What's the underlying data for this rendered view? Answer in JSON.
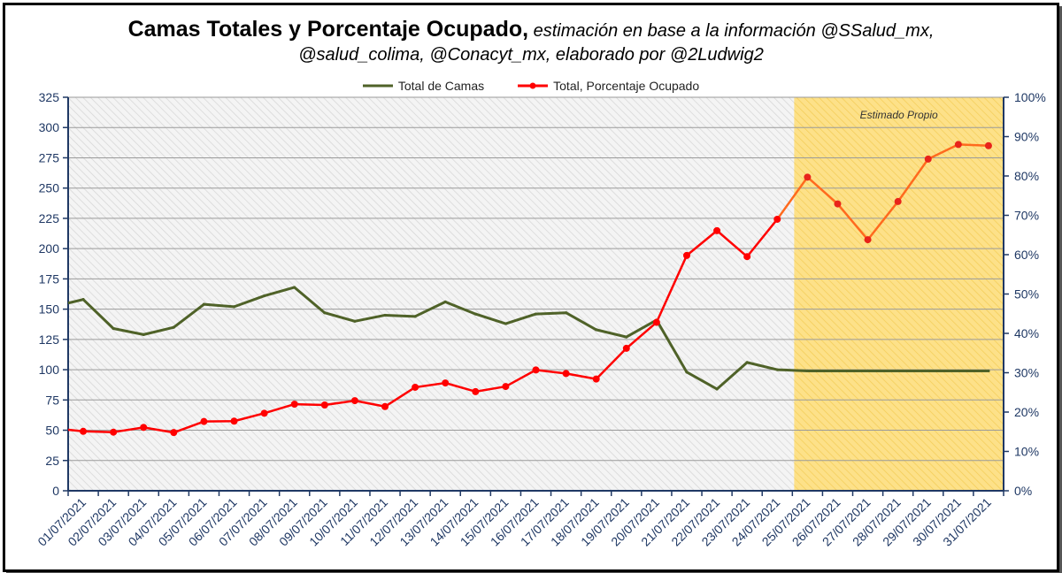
{
  "chart_data": {
    "type": "line",
    "title": "Camas Totales y Porcentaje Ocupado,",
    "subtitle_line1": "estimación en base a la información @SSalud_mx,",
    "subtitle_line2": "@salud_colima, @Conacyt_mx, elaborado por @2Ludwig2",
    "x": [
      "01/07/2021",
      "02/07/2021",
      "03/07/2021",
      "04/07/2021",
      "05/07/2021",
      "06/07/2021",
      "07/07/2021",
      "08/07/2021",
      "09/07/2021",
      "10/07/2021",
      "11/07/2021",
      "12/07/2021",
      "13/07/2021",
      "14/07/2021",
      "15/07/2021",
      "16/07/2021",
      "17/07/2021",
      "18/07/2021",
      "19/07/2021",
      "20/07/2021",
      "21/07/2021",
      "22/07/2021",
      "23/07/2021",
      "24/07/2021",
      "25/07/2021",
      "26/07/2021",
      "27/07/2021",
      "28/07/2021",
      "29/07/2021",
      "30/07/2021",
      "31/07/2021"
    ],
    "series": [
      {
        "name": "Total de Camas",
        "axis": "left",
        "color": "#4f6228",
        "start_value": 155,
        "values": [
          158,
          134,
          129,
          135,
          154,
          152,
          161,
          168,
          147,
          140,
          145,
          144,
          156,
          146,
          138,
          146,
          147,
          133,
          127,
          141,
          98,
          84,
          106,
          100,
          99,
          99,
          99,
          99,
          99,
          99,
          99
        ]
      },
      {
        "name": "Total, Porcentaje Ocupado",
        "axis": "right",
        "color": "#ff0000",
        "estimated_color": "#ff6a1e",
        "start_value": 0.155,
        "values": [
          0.151,
          0.149,
          0.161,
          0.148,
          0.176,
          0.177,
          0.197,
          0.22,
          0.218,
          0.229,
          0.214,
          0.263,
          0.274,
          0.252,
          0.265,
          0.307,
          0.298,
          0.284,
          0.362,
          0.428,
          0.598,
          0.661,
          0.595,
          0.69,
          0.797,
          0.729,
          0.638,
          0.735,
          0.843,
          0.88,
          0.877
        ]
      }
    ],
    "y_left": {
      "min": 0,
      "max": 325,
      "ticks": [
        0,
        25,
        50,
        75,
        100,
        125,
        150,
        175,
        200,
        225,
        250,
        275,
        300,
        325
      ]
    },
    "y_right": {
      "min": 0,
      "max": 1,
      "ticks": [
        "0%",
        "10%",
        "20%",
        "30%",
        "40%",
        "50%",
        "60%",
        "70%",
        "80%",
        "90%",
        "100%"
      ]
    },
    "estimated_region": {
      "label": "Estimado Propio",
      "from_category": "25/07/2021",
      "to_category": "31/07/2021"
    },
    "legend_position": "top-center",
    "grid": true
  },
  "colors": {
    "axis": "#1f3864",
    "grid": "#9a9a9a",
    "estimate_fill": "#ffd966"
  }
}
